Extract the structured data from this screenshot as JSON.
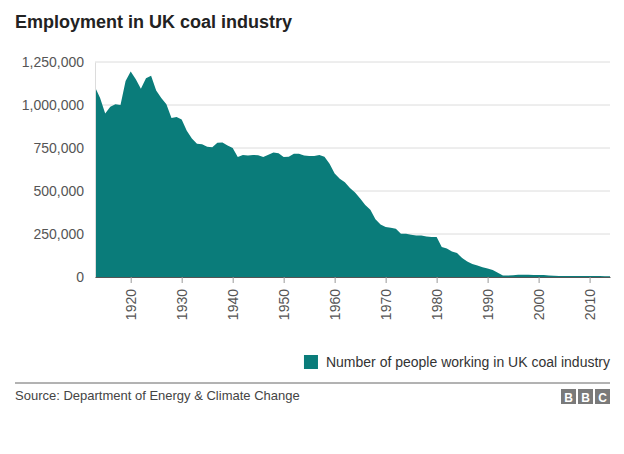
{
  "chart_data": {
    "type": "area",
    "title": "Employment in UK coal industry",
    "source": "Source: Department of Energy & Climate Change",
    "logo": [
      "B",
      "B",
      "C"
    ],
    "x": [
      1913,
      1914,
      1915,
      1916,
      1917,
      1918,
      1919,
      1920,
      1921,
      1922,
      1923,
      1924,
      1925,
      1926,
      1927,
      1928,
      1929,
      1930,
      1931,
      1932,
      1933,
      1934,
      1935,
      1936,
      1937,
      1938,
      1939,
      1940,
      1941,
      1942,
      1943,
      1944,
      1945,
      1946,
      1947,
      1948,
      1949,
      1950,
      1951,
      1952,
      1953,
      1954,
      1955,
      1956,
      1957,
      1958,
      1959,
      1960,
      1961,
      1962,
      1963,
      1964,
      1965,
      1966,
      1967,
      1968,
      1969,
      1970,
      1971,
      1972,
      1973,
      1974,
      1975,
      1976,
      1977,
      1978,
      1979,
      1980,
      1981,
      1982,
      1983,
      1984,
      1985,
      1986,
      1987,
      1988,
      1989,
      1990,
      1991,
      1992,
      1993,
      1994,
      1995,
      1996,
      1997,
      1998,
      1999,
      2000,
      2001,
      2002,
      2003,
      2004,
      2005,
      2006,
      2007,
      2008,
      2009,
      2010,
      2011,
      2012,
      2013,
      2014
    ],
    "series": [
      {
        "name": "Number of people working in UK coal industry",
        "color": "#0a7c7a",
        "values": [
          1105000,
          1040000,
          950000,
          990000,
          1005000,
          1000000,
          1140000,
          1195000,
          1150000,
          1095000,
          1155000,
          1170000,
          1085000,
          1040000,
          1005000,
          925000,
          930000,
          915000,
          850000,
          805000,
          775000,
          772000,
          757000,
          755000,
          780000,
          782000,
          765000,
          750000,
          697000,
          709000,
          707000,
          710000,
          708000,
          697000,
          711000,
          724000,
          720000,
          697000,
          699000,
          716000,
          717000,
          707000,
          704000,
          703000,
          710000,
          699000,
          658000,
          602000,
          571000,
          551000,
          517000,
          491000,
          456000,
          419000,
          391000,
          336000,
          305000,
          290000,
          287000,
          281000,
          252000,
          252000,
          246000,
          242000,
          241000,
          235000,
          232000,
          232000,
          175000,
          165000,
          148000,
          139000,
          110000,
          90000,
          75000,
          67000,
          57000,
          49000,
          40000,
          25000,
          8000,
          8000,
          10000,
          13000,
          13000,
          13000,
          12000,
          11000,
          11000,
          9000,
          7000,
          6000,
          6000,
          6000,
          6000,
          6000,
          6000,
          6000,
          6000,
          6000,
          4000,
          4000
        ]
      }
    ],
    "xlim": [
      1913,
      2014
    ],
    "xticks": [
      1920,
      1930,
      1940,
      1950,
      1960,
      1970,
      1980,
      1990,
      2000,
      2010
    ],
    "ylim": [
      0,
      1250000
    ],
    "yticks": [
      0,
      {
        "value": 250000,
        "label": "250,000"
      },
      {
        "value": 500000,
        "label": "500,000"
      },
      {
        "value": 750000,
        "label": "750,000"
      },
      {
        "value": 1000000,
        "label": "1,000,000"
      },
      {
        "value": 1250000,
        "label": "1,250,000"
      }
    ],
    "grid": true,
    "legend": "bottom-right"
  }
}
